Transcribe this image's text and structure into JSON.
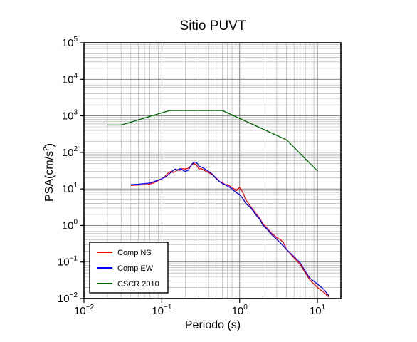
{
  "chart_data": {
    "type": "line",
    "title": "Sitio PUVT",
    "xlabel": "Periodo (s)",
    "ylabel": "PSA(cm/s",
    "ylabel_sup": "2",
    "ylabel_close": ")",
    "x_scale": "log",
    "y_scale": "log",
    "xlim": [
      0.01,
      20
    ],
    "ylim": [
      0.01,
      100000
    ],
    "grid": true,
    "legend_position": "bottom-left",
    "x_ticks": [
      {
        "base": "10",
        "exp": "−2",
        "value": 0.01
      },
      {
        "base": "10",
        "exp": "−1",
        "value": 0.1
      },
      {
        "base": "10",
        "exp": "0",
        "value": 1
      },
      {
        "base": "10",
        "exp": "1",
        "value": 10
      }
    ],
    "y_ticks": [
      {
        "base": "10",
        "exp": "−2",
        "value": 0.01
      },
      {
        "base": "10",
        "exp": "−1",
        "value": 0.1
      },
      {
        "base": "10",
        "exp": "0",
        "value": 1
      },
      {
        "base": "10",
        "exp": "1",
        "value": 10
      },
      {
        "base": "10",
        "exp": "2",
        "value": 100
      },
      {
        "base": "10",
        "exp": "3",
        "value": 1000
      },
      {
        "base": "10",
        "exp": "4",
        "value": 10000
      },
      {
        "base": "10",
        "exp": "5",
        "value": 100000
      }
    ],
    "series": [
      {
        "name": "CSCR 2010",
        "color": "#006400",
        "points": [
          [
            0.02,
            560
          ],
          [
            0.03,
            560
          ],
          [
            0.125,
            1400
          ],
          [
            0.6,
            1400
          ],
          [
            4.0,
            220
          ],
          [
            10.0,
            31
          ]
        ]
      },
      {
        "name": "Comp NS",
        "color": "#ff0000",
        "points": [
          [
            0.04,
            12.5
          ],
          [
            0.05,
            12.8
          ],
          [
            0.06,
            13
          ],
          [
            0.07,
            13.5
          ],
          [
            0.08,
            15
          ],
          [
            0.09,
            17
          ],
          [
            0.1,
            19
          ],
          [
            0.11,
            22
          ],
          [
            0.12,
            27
          ],
          [
            0.13,
            30
          ],
          [
            0.14,
            28
          ],
          [
            0.15,
            30
          ],
          [
            0.16,
            34
          ],
          [
            0.17,
            32
          ],
          [
            0.18,
            36
          ],
          [
            0.2,
            35
          ],
          [
            0.22,
            37
          ],
          [
            0.24,
            44
          ],
          [
            0.26,
            50
          ],
          [
            0.28,
            44
          ],
          [
            0.3,
            35
          ],
          [
            0.32,
            36
          ],
          [
            0.35,
            32
          ],
          [
            0.4,
            28
          ],
          [
            0.45,
            24
          ],
          [
            0.5,
            20
          ],
          [
            0.55,
            16
          ],
          [
            0.6,
            15
          ],
          [
            0.65,
            13
          ],
          [
            0.7,
            13
          ],
          [
            0.8,
            11
          ],
          [
            0.9,
            9
          ],
          [
            1.0,
            11
          ],
          [
            1.1,
            8
          ],
          [
            1.2,
            5
          ],
          [
            1.4,
            3.2
          ],
          [
            1.6,
            2.2
          ],
          [
            1.8,
            1.6
          ],
          [
            2.0,
            1.1
          ],
          [
            2.3,
            0.8
          ],
          [
            2.6,
            0.6
          ],
          [
            3.0,
            0.46
          ],
          [
            3.3,
            0.42
          ],
          [
            3.6,
            0.35
          ],
          [
            4.0,
            0.22
          ],
          [
            5.0,
            0.13
          ],
          [
            6.0,
            0.085
          ],
          [
            7.0,
            0.05
          ],
          [
            8.0,
            0.032
          ],
          [
            10.0,
            0.02
          ],
          [
            12.0,
            0.015
          ],
          [
            14.0,
            0.011
          ]
        ]
      },
      {
        "name": "Comp EW",
        "color": "#0000ff",
        "points": [
          [
            0.04,
            13
          ],
          [
            0.05,
            13.5
          ],
          [
            0.06,
            14
          ],
          [
            0.07,
            14.5
          ],
          [
            0.08,
            16
          ],
          [
            0.09,
            17.5
          ],
          [
            0.1,
            19
          ],
          [
            0.11,
            21
          ],
          [
            0.12,
            24
          ],
          [
            0.13,
            28
          ],
          [
            0.14,
            32
          ],
          [
            0.15,
            35
          ],
          [
            0.16,
            32
          ],
          [
            0.17,
            36
          ],
          [
            0.18,
            34
          ],
          [
            0.2,
            30
          ],
          [
            0.22,
            33
          ],
          [
            0.24,
            45
          ],
          [
            0.26,
            55
          ],
          [
            0.28,
            52
          ],
          [
            0.3,
            42
          ],
          [
            0.32,
            40
          ],
          [
            0.35,
            36
          ],
          [
            0.4,
            30
          ],
          [
            0.45,
            25
          ],
          [
            0.5,
            19
          ],
          [
            0.55,
            16
          ],
          [
            0.6,
            14
          ],
          [
            0.65,
            13
          ],
          [
            0.7,
            12
          ],
          [
            0.8,
            10
          ],
          [
            0.9,
            8
          ],
          [
            1.0,
            7
          ],
          [
            1.1,
            5.5
          ],
          [
            1.2,
            4
          ],
          [
            1.4,
            3
          ],
          [
            1.6,
            2.0
          ],
          [
            1.8,
            1.5
          ],
          [
            2.0,
            1.0
          ],
          [
            2.3,
            0.75
          ],
          [
            2.6,
            0.55
          ],
          [
            3.0,
            0.42
          ],
          [
            3.5,
            0.3
          ],
          [
            4.0,
            0.22
          ],
          [
            5.0,
            0.14
          ],
          [
            6.0,
            0.095
          ],
          [
            7.0,
            0.055
          ],
          [
            8.0,
            0.036
          ],
          [
            10.0,
            0.025
          ],
          [
            12.0,
            0.018
          ],
          [
            14.0,
            0.012
          ]
        ]
      }
    ],
    "legend": [
      {
        "label": "Comp NS",
        "color": "#ff0000"
      },
      {
        "label": "Comp EW",
        "color": "#0000ff"
      },
      {
        "label": "CSCR 2010",
        "color": "#006400"
      }
    ]
  }
}
